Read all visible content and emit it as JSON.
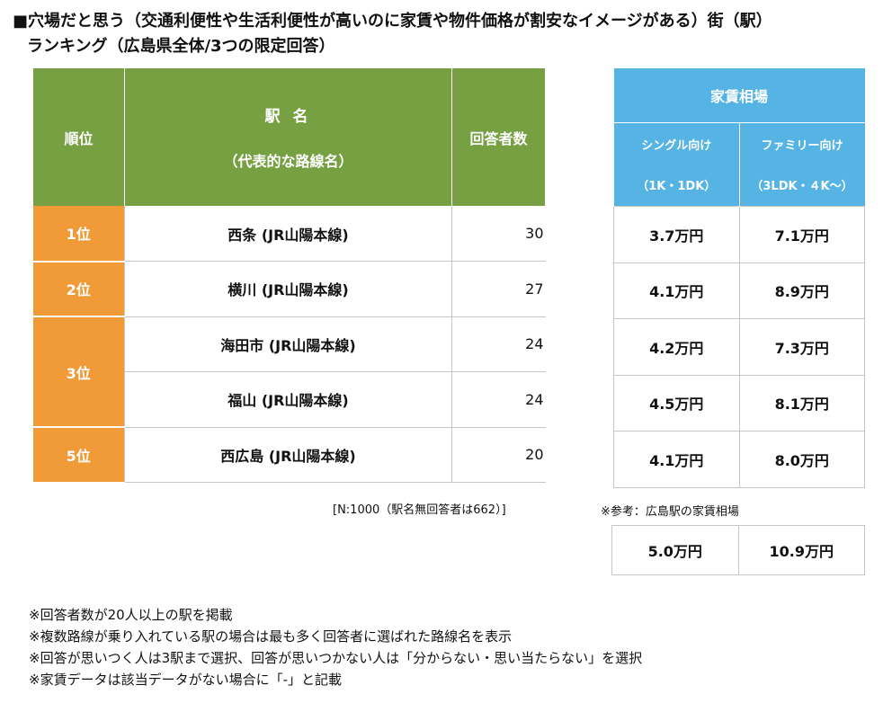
{
  "title": {
    "line1": "■穴場だと思う（交通利便性や生活利便性が高いのに家賃や物件価格が割安なイメージがある）街（駅）",
    "line2": "ランキング（広島県全体/3つの限定回答）"
  },
  "headers": {
    "rank": "順位",
    "station_main": "駅 名",
    "station_sub": "（代表的な路線名）",
    "count": "回答者数",
    "rent_main": "家賃相場",
    "single_1": "シングル向け",
    "single_2": "（1K・1DK）",
    "family_1": "ファミリー向け",
    "family_2": "（3LDK・４K～）"
  },
  "rows": [
    {
      "rank": "1位",
      "station": "西条 (JR山陽本線)",
      "count": "30",
      "single": "3.7万円",
      "family": "7.1万円"
    },
    {
      "rank": "2位",
      "station": "横川 (JR山陽本線)",
      "count": "27",
      "single": "4.1万円",
      "family": "8.9万円"
    },
    {
      "rank": "3位",
      "station": "海田市 (JR山陽本線)",
      "count": "24",
      "single": "4.2万円",
      "family": "7.3万円"
    },
    {
      "rank": "",
      "station": "福山 (JR山陽本線)",
      "count": "24",
      "single": "4.5万円",
      "family": "8.1万円"
    },
    {
      "rank": "5位",
      "station": "西広島 (JR山陽本線)",
      "count": "20",
      "single": "4.1万円",
      "family": "8.0万円"
    }
  ],
  "sample_note": "[N:1000（駅名無回答者は662）]",
  "reference": {
    "label": "※参考：広島駅の家賃相場",
    "single": "5.0万円",
    "family": "10.9万円"
  },
  "footnotes": [
    "※回答者数が20人以上の駅を掲載",
    "※複数路線が乗り入れている駅の場合は最も多く回答者に選ばれた路線名を表示",
    "※回答が思いつく人は3駅まで選択、回答が思いつかない人は「分からない・思い当たらない」を選択",
    "※家賃データは該当データがない場合に「-」と記載"
  ]
}
